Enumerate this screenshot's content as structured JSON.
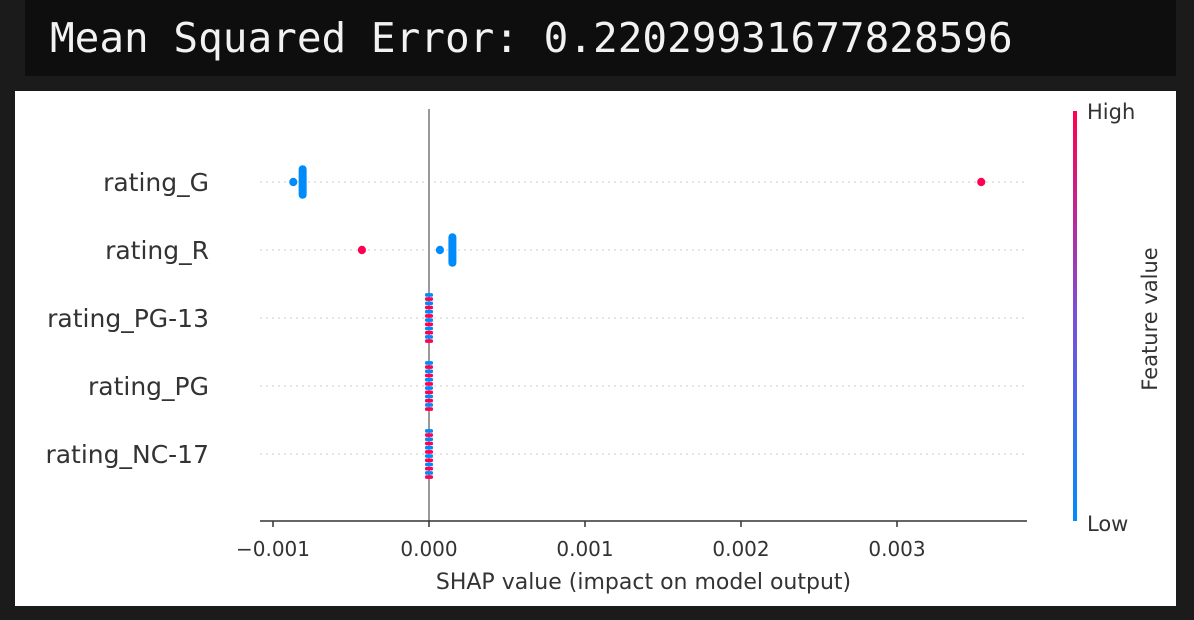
{
  "output": {
    "mse_text": "Mean Squared Error: 0.22029931677828596"
  },
  "colors": {
    "high": "#ff0052",
    "low": "#008bfb",
    "axis": "#333333",
    "zero_line": "#999999",
    "grid": "#cccccc"
  },
  "chart_data": {
    "type": "scatter",
    "subtype": "shap-beeswarm",
    "title": "",
    "xlabel": "SHAP value (impact on model output)",
    "ylabel": "",
    "xlim": [
      -0.0011,
      0.00375
    ],
    "xticks": [
      -0.001,
      0.0,
      0.001,
      0.002,
      0.003
    ],
    "xtick_labels": [
      "−0.001",
      "0.000",
      "0.001",
      "0.002",
      "0.003"
    ],
    "grid": "dotted horizontal row lines",
    "features": [
      {
        "name": "rating_G",
        "points": [
          {
            "shap": -0.00081,
            "value": "low",
            "count": 8
          },
          {
            "shap": -0.00087,
            "value": "low",
            "count": 2
          },
          {
            "shap": 0.00354,
            "value": "high",
            "count": 2
          }
        ]
      },
      {
        "name": "rating_R",
        "points": [
          {
            "shap": -0.00043,
            "value": "high",
            "count": 2
          },
          {
            "shap": 7e-05,
            "value": "low",
            "count": 2
          },
          {
            "shap": 0.00015,
            "value": "low",
            "count": 8
          }
        ]
      },
      {
        "name": "rating_PG-13",
        "points": [
          {
            "shap": 0.0,
            "value": "mixed",
            "count": 12
          }
        ]
      },
      {
        "name": "rating_PG",
        "points": [
          {
            "shap": 0.0,
            "value": "mixed",
            "count": 12
          }
        ]
      },
      {
        "name": "rating_NC-17",
        "points": [
          {
            "shap": 0.0,
            "value": "mixed",
            "count": 12
          }
        ]
      }
    ],
    "colorbar": {
      "label": "Feature value",
      "high_label": "High",
      "low_label": "Low"
    }
  }
}
